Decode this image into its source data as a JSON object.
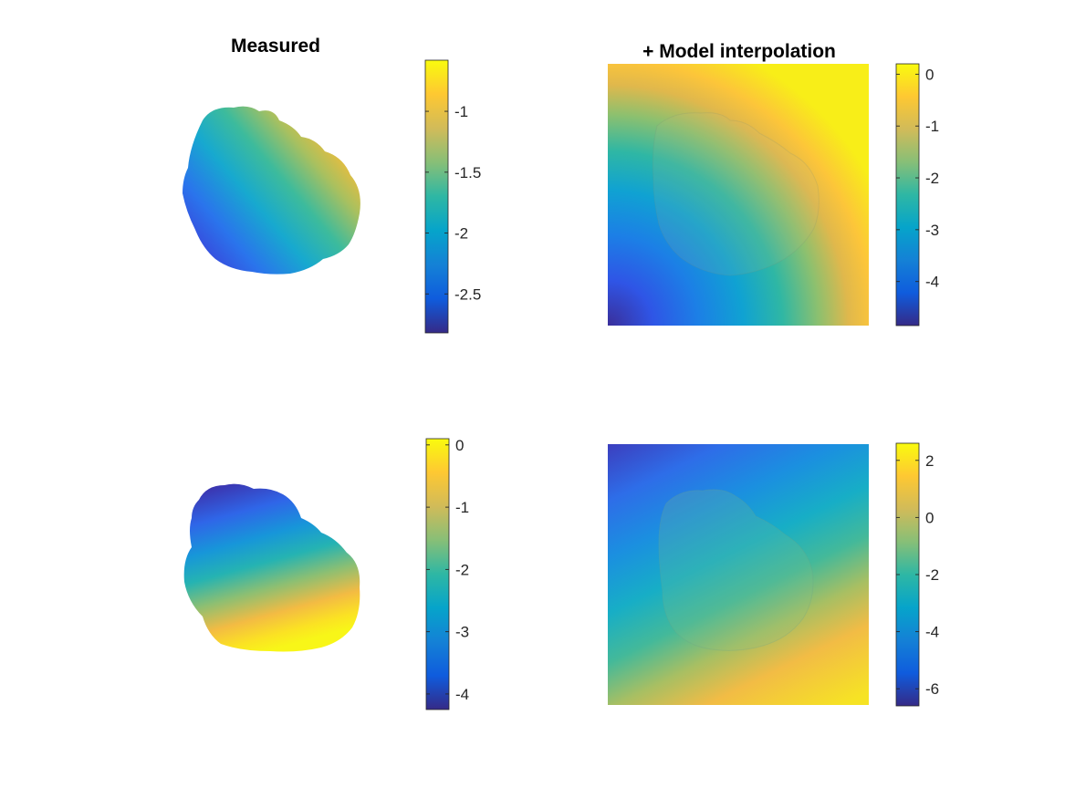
{
  "figure": {
    "colormap": "parula",
    "background": "#ffffff"
  },
  "chart_data": [
    {
      "type": "heatmap",
      "title": "Measured",
      "shape": "irregular-blob",
      "surface": {
        "gradient_direction": "lower-left to upper-right",
        "low_corner": "lower-left",
        "value_range": [
          -2.82,
          -0.58
        ]
      },
      "colorbar": {
        "ticks": [
          -1,
          -1.5,
          -2,
          -2.5
        ],
        "labels": [
          "-1",
          "-1.5",
          "-2",
          "-2.5"
        ],
        "range": [
          -2.82,
          -0.58
        ]
      }
    },
    {
      "type": "heatmap",
      "title": "+ Model interpolation",
      "shape": "square",
      "surface": {
        "gradient_direction": "lower-left to upper-right (radial)",
        "low_corner": "lower-left",
        "value_range": [
          -4.85,
          0.2
        ]
      },
      "colorbar": {
        "ticks": [
          0,
          -1,
          -2,
          -3,
          -4
        ],
        "labels": [
          "0",
          "-1",
          "-2",
          "-3",
          "-4"
        ],
        "range": [
          -4.85,
          0.2
        ]
      }
    },
    {
      "type": "heatmap",
      "title": "",
      "shape": "irregular-blob",
      "surface": {
        "gradient_direction": "top to bottom",
        "low_corner": "top",
        "value_range": [
          -4.2,
          0.05
        ]
      },
      "colorbar": {
        "ticks": [
          0,
          -1,
          -2,
          -3,
          -4
        ],
        "labels": [
          "0",
          "-1",
          "-2",
          "-3",
          "-4"
        ],
        "range": [
          -4.25,
          0.1
        ]
      }
    },
    {
      "type": "heatmap",
      "title": "",
      "shape": "square",
      "surface": {
        "gradient_direction": "upper-left to lower-right",
        "low_corner": "upper-left",
        "value_range": [
          -6.6,
          2.6
        ]
      },
      "colorbar": {
        "ticks": [
          2,
          0,
          -2,
          -4,
          -6
        ],
        "labels": [
          "2",
          "0",
          "-2",
          "-4",
          "-6"
        ],
        "range": [
          -6.6,
          2.6
        ]
      }
    }
  ]
}
